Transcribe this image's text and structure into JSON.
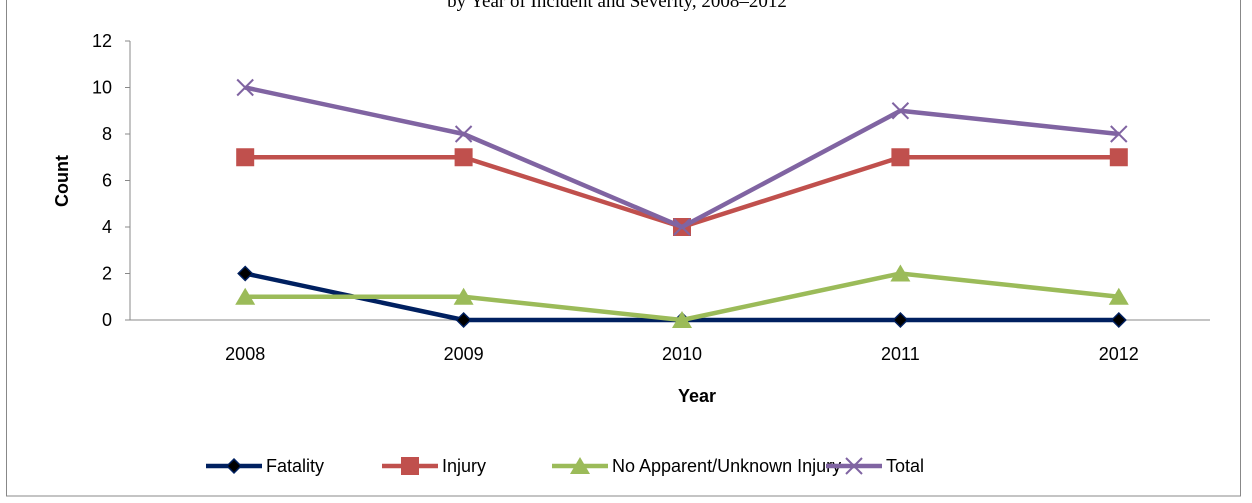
{
  "chart_data": {
    "type": "line",
    "title": "by Year of Incident and Severity, 2008–2012",
    "x_label": "Year",
    "y_label": "Count",
    "categories": [
      "2008",
      "2009",
      "2010",
      "2011",
      "2012"
    ],
    "series": [
      {
        "name": "Fatality",
        "color": "#002060",
        "marker": "diamond",
        "values": [
          2,
          0,
          0,
          0,
          0
        ]
      },
      {
        "name": "Injury",
        "color": "#c0504d",
        "marker": "square",
        "values": [
          7,
          7,
          4,
          7,
          7
        ]
      },
      {
        "name": "No Apparent/Unknown Injury",
        "color": "#9bbb59",
        "marker": "triangle",
        "values": [
          1,
          1,
          0,
          2,
          1
        ]
      },
      {
        "name": "Total",
        "color": "#8064a2",
        "marker": "x",
        "values": [
          10,
          8,
          4,
          9,
          8
        ]
      }
    ],
    "ylim": [
      0,
      12
    ],
    "yticks": [
      0,
      2,
      4,
      6,
      8,
      10,
      12
    ],
    "grid": false,
    "legend": "bottom"
  }
}
